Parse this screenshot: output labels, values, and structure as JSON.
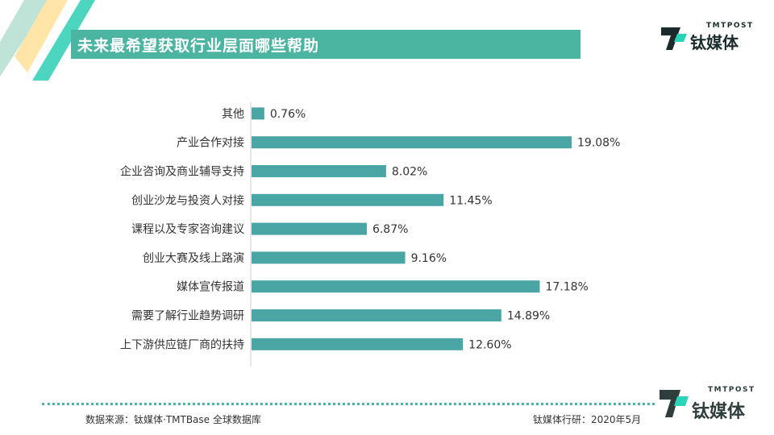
{
  "header": {
    "title": "未来最希望获取行业层面哪些帮助"
  },
  "brand": {
    "name_en": "TMTPOST",
    "name_cn": "钛媒体",
    "accent_color": "#4cb5a2",
    "bar_color": "#4aa5a5"
  },
  "chart_data": {
    "type": "bar",
    "orientation": "horizontal",
    "categories": [
      "其他",
      "产业合作对接",
      "企业咨询及商业辅导支持",
      "创业沙龙与投资人对接",
      "课程以及专家咨询建议",
      "创业大赛及线上路演",
      "媒体宣传报道",
      "需要了解行业趋势调研",
      "上下游供应链厂商的扶持"
    ],
    "values": [
      0.76,
      19.08,
      8.02,
      11.45,
      6.87,
      9.16,
      17.18,
      14.89,
      12.6
    ],
    "value_labels": [
      "0.76%",
      "19.08%",
      "8.02%",
      "11.45%",
      "6.87%",
      "9.16%",
      "17.18%",
      "14.89%",
      "12.60%"
    ],
    "unit": "%",
    "xlim": [
      0,
      19.08
    ],
    "grid": false,
    "legend": "none"
  },
  "footer": {
    "source": "数据来源：钛媒体·TMTBase 全球数据库",
    "credit": "钛媒体行研：2020年5月"
  }
}
